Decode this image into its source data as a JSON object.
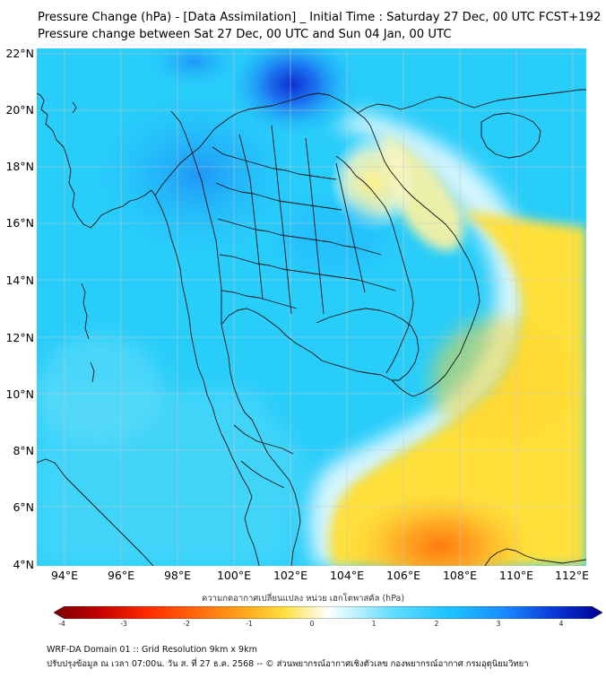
{
  "header": {
    "title": "Pressure Change (hPa) - [Data Assimilation] _ Initial Time : Saturday 27 Dec, 00 UTC FCST+192",
    "subtitle": "Pressure change between Sat 27 Dec, 00 UTC and Sun 04 Jan, 00 UTC"
  },
  "map": {
    "lat_labels": [
      "22°N",
      "20°N",
      "18°N",
      "16°N",
      "14°N",
      "12°N",
      "10°N",
      "8°N",
      "6°N",
      "4°N"
    ],
    "lon_labels": [
      "94°E",
      "96°E",
      "98°E",
      "100°E",
      "102°E",
      "104°E",
      "106°E",
      "108°E",
      "110°E",
      "112°E"
    ],
    "lat_values": [
      22,
      20,
      18,
      16,
      14,
      12,
      10,
      8,
      6,
      4
    ],
    "lon_values": [
      94,
      96,
      98,
      100,
      102,
      104,
      106,
      108,
      110,
      112
    ],
    "extent": {
      "lon_min": 93,
      "lon_max": 112.5,
      "lat_min": 4,
      "lat_max": 22.3
    },
    "field_features": [
      {
        "name": "pressure-fall-max",
        "lon": 101.8,
        "lat": 20.8,
        "value": 3.6
      },
      {
        "name": "pressure-fall-nw",
        "lon": 98.5,
        "lat": 22.2,
        "value": 3.0
      },
      {
        "name": "pressure-rise-max",
        "lon": 107.5,
        "lat": 4.5,
        "value": -1.8
      },
      {
        "name": "pressure-rise-east",
        "lon": 108,
        "lat": 12.5,
        "value": -0.8
      },
      {
        "name": "pressure-rise-gulf-tonkin",
        "lon": 105.8,
        "lat": 17.8,
        "value": -0.5
      }
    ]
  },
  "colorbar": {
    "caption": "ความกดอากาศเปลี่ยนแปลง หน่วย เฮกโตพาสคัล (hPa)",
    "tick_labels": [
      "-4",
      "-3",
      "-2",
      "-1",
      "0",
      "1",
      "2",
      "3",
      "4"
    ],
    "range": [
      -4,
      4
    ],
    "colors": [
      "#7a0000",
      "#d40000",
      "#ff3a00",
      "#ff8a10",
      "#ffc020",
      "#ffe560",
      "#fff6c8",
      "#ffffff",
      "#c8f4ff",
      "#5fdcff",
      "#1ec3ff",
      "#1a8cff",
      "#0a3ad8",
      "#000090"
    ]
  },
  "footer": {
    "line1": "WRF-DA Domain 01 :: Grid Resolution 9km x 9km",
    "line2": "ปรับปรุงข้อมูล ณ เวลา 07:00น. วัน ส. ที่ 27 ธ.ค. 2568 -- © ส่วนพยากรณ์อากาศเชิงตัวเลข กองพยากรณ์อากาศ กรมอุตุนิยมวิทยา"
  },
  "colors": {
    "fall_strong": "#0a3ad8",
    "fall": "#1ec3ff",
    "neutral": "#ffffff",
    "rise": "#ffe14a",
    "rise_strong": "#ff8a10",
    "coastline": "#000000",
    "grid": "#c7c7c7"
  }
}
